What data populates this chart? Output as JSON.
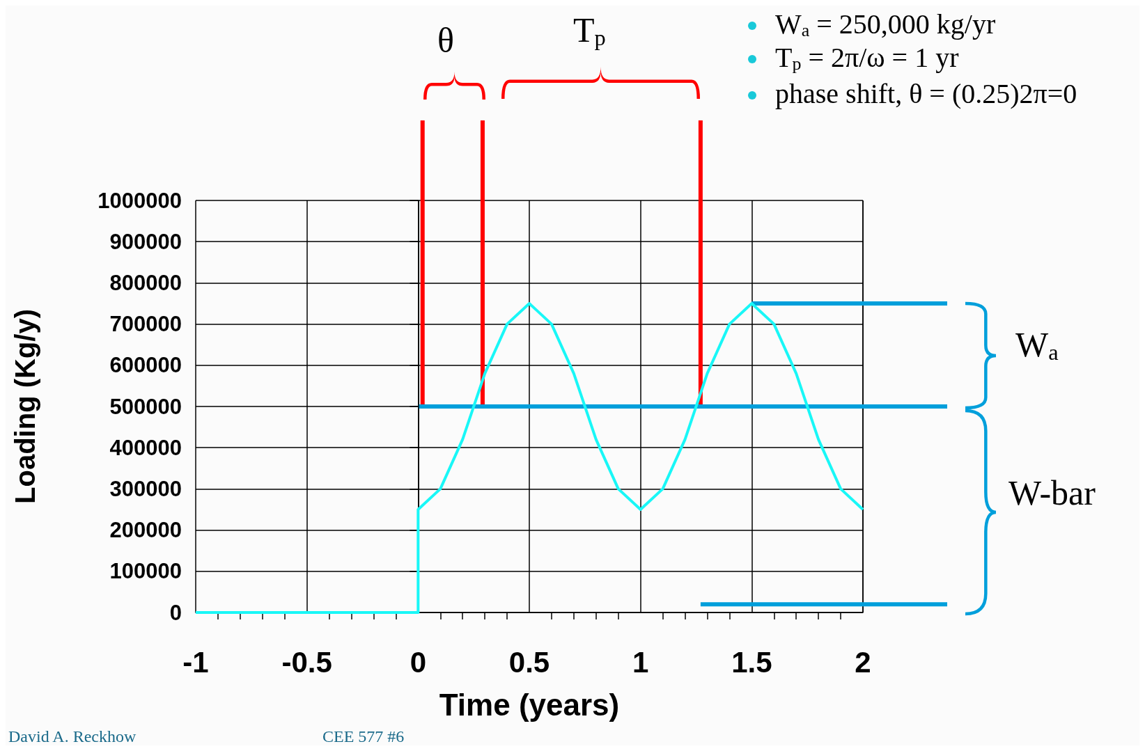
{
  "chart_data": {
    "type": "line",
    "xlabel": "Time (years)",
    "ylabel": "Loading (Kg/y)",
    "xlim": [
      -1,
      2
    ],
    "xticks": [
      -1,
      -0.5,
      0,
      0.5,
      1,
      1.5,
      2
    ],
    "ylim": [
      0,
      1000000
    ],
    "yticks": [
      0,
      100000,
      200000,
      300000,
      400000,
      500000,
      600000,
      700000,
      800000,
      900000,
      1000000
    ],
    "grid": true,
    "marker": "none",
    "line_style": "solid",
    "series": [
      {
        "color": "#19f7f7",
        "x": [
          -1,
          0,
          0,
          0.1,
          0.2,
          0.3,
          0.4,
          0.5,
          0.6,
          0.7,
          0.8,
          0.9,
          1.0,
          1.1,
          1.2,
          1.3,
          1.4,
          1.5,
          1.6,
          1.7,
          1.8,
          1.9,
          2.0
        ],
        "values": [
          0,
          0,
          250000,
          300000,
          420000,
          580000,
          700000,
          750000,
          700000,
          580000,
          420000,
          300000,
          250000,
          300000,
          420000,
          580000,
          700000,
          750000,
          700000,
          580000,
          420000,
          300000,
          250000
        ]
      }
    ],
    "ref_lines": [
      {
        "axis": "x",
        "value": 0.02,
        "color": "#ff0000"
      },
      {
        "axis": "x",
        "value": 0.29,
        "color": "#ff0000"
      },
      {
        "axis": "x",
        "value": 1.27,
        "color": "#ff0000"
      },
      {
        "axis": "y",
        "value": 500000,
        "color": "#009fdb"
      },
      {
        "axis": "y",
        "value": 750000,
        "color": "#009fdb"
      },
      {
        "axis": "y",
        "value": 20000,
        "color": "#009fdb"
      }
    ],
    "annotations": [
      "θ",
      "T$_{p}$",
      "W$_{a}$",
      "W-bar",
      "W$_{a}$ = 250,000 kg/yr",
      "T$_{p}$ = 2π/ω = 1 yr",
      "phase shift, θ = (0.25)2π=0",
      "David A. Reckhow",
      "CEE 577 #6"
    ]
  }
}
